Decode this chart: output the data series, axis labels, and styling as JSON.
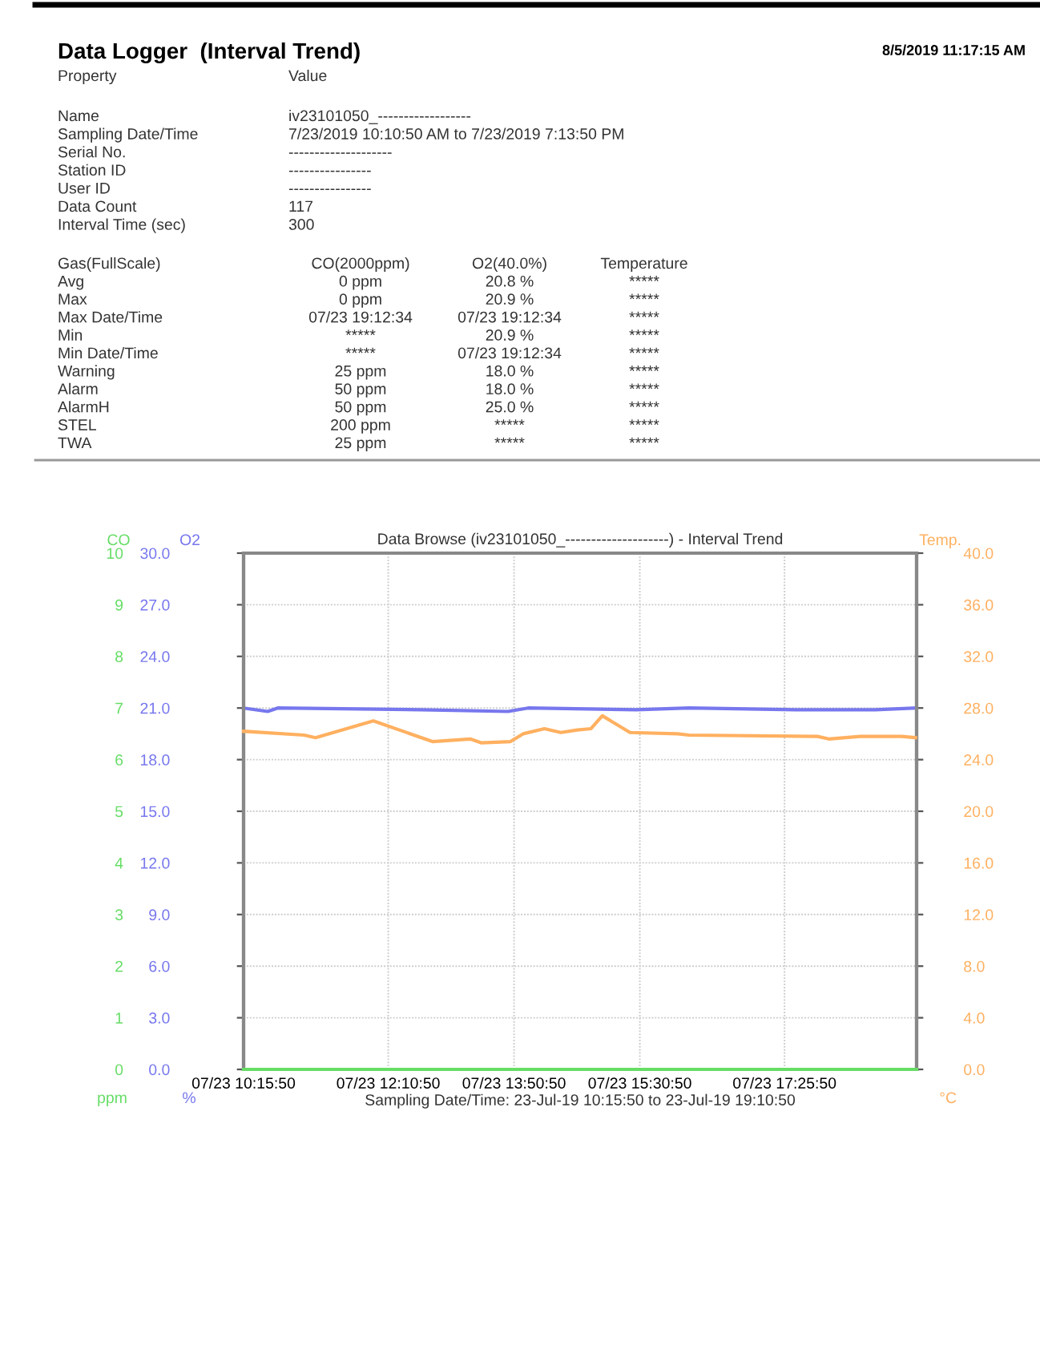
{
  "chart_data": {
    "type": "line",
    "title": "Data Logger  (Interval Trend)",
    "subtitle": "Data Browse (iv23101050_--------------------) - Interval Trend",
    "xlabel": "Sampling Date/Time: 23-Jul-19 10:15:50 to 23-Jul-19 19:10:50",
    "ylabel": "O2",
    "y2label": "Temp.",
    "y3label": "CO",
    "annotations": [
      "8/5/2019 11:17:15 AM",
      "Property",
      "Value",
      "Name",
      "iv23101050_------------------",
      "Sampling Date/Time",
      "7/23/2019 10:10:50 AM to 7/23/2019 7:13:50 PM",
      "Serial No.",
      "--------------------",
      "Station ID",
      "----------------",
      "User ID",
      "----------------",
      "Data Count",
      "117",
      "Interval Time (sec)",
      "300",
      "Gas(FullScale)",
      "CO(2000ppm)",
      "O2(40.0%)",
      "Temperature",
      "Avg",
      "0 ppm",
      "20.8 %",
      "*****",
      "Max",
      "0 ppm",
      "20.9 %",
      "*****",
      "Max Date/Time",
      "07/23 19:12:34",
      "07/23 19:12:34",
      "*****",
      "Min",
      "*****",
      "20.9 %",
      "*****",
      "Min Date/Time",
      "*****",
      "07/23 19:12:34",
      "*****",
      "Warning",
      "25 ppm",
      "18.0 %",
      "*****",
      "Alarm",
      "50 ppm",
      "18.0 %",
      "*****",
      "AlarmH",
      "50 ppm",
      "25.0 %",
      "*****",
      "STEL",
      "200 ppm",
      "*****",
      "*****",
      "TWA",
      "25 ppm",
      "*****",
      "*****",
      "ppm",
      "%",
      "°C"
    ],
    "xlim": [
      "2019-07-23T10:15:50",
      "2019-07-23T19:10:50"
    ],
    "xticks": [
      {
        "value": "2019-07-23T10:15:50",
        "label": "07/23 10:15:50"
      },
      {
        "value": "2019-07-23T12:10:50",
        "label": "07/23 12:10:50"
      },
      {
        "value": "2019-07-23T13:50:50",
        "label": "07/23 13:50:50"
      },
      {
        "value": "2019-07-23T15:30:50",
        "label": "07/23 15:30:50"
      },
      {
        "value": "2019-07-23T17:25:50",
        "label": "07/23 17:25:50"
      }
    ],
    "ylim": [
      0,
      30
    ],
    "yticks": [
      {
        "value": 0,
        "label": "0.0"
      },
      {
        "value": 3,
        "label": "3.0"
      },
      {
        "value": 6,
        "label": "6.0"
      },
      {
        "value": 9,
        "label": "9.0"
      },
      {
        "value": 12,
        "label": "12.0"
      },
      {
        "value": 15,
        "label": "15.0"
      },
      {
        "value": 18,
        "label": "18.0"
      },
      {
        "value": 21,
        "label": "21.0"
      },
      {
        "value": 24,
        "label": "24.0"
      },
      {
        "value": 27,
        "label": "27.0"
      },
      {
        "value": 30,
        "label": "30.0"
      }
    ],
    "y2lim": [
      0,
      40
    ],
    "y2ticks": [
      {
        "value": 0,
        "label": "0.0"
      },
      {
        "value": 4,
        "label": "4.0"
      },
      {
        "value": 8,
        "label": "8.0"
      },
      {
        "value": 12,
        "label": "12.0"
      },
      {
        "value": 16,
        "label": "16.0"
      },
      {
        "value": 20,
        "label": "20.0"
      },
      {
        "value": 24,
        "label": "24.0"
      },
      {
        "value": 28,
        "label": "28.0"
      },
      {
        "value": 32,
        "label": "32.0"
      },
      {
        "value": 36,
        "label": "36.0"
      },
      {
        "value": 40,
        "label": "40.0"
      }
    ],
    "y3lim": [
      0,
      10
    ],
    "y3ticks": [
      0,
      1,
      2,
      3,
      4,
      5,
      6,
      7,
      8,
      9,
      10
    ],
    "grid": true,
    "series": [
      {
        "color": "#66dd66",
        "axis": "y3",
        "x": [
          "2019-07-23T10:15:50",
          "2019-07-23T19:10:50"
        ],
        "values": [
          0,
          0
        ]
      },
      {
        "color": "#7777ee",
        "axis": "y",
        "x": [
          "2019-07-23T10:15:50",
          "2019-07-23T10:35",
          "2019-07-23T10:43",
          "2019-07-23T12:37",
          "2019-07-23T13:46",
          "2019-07-23T14:02",
          "2019-07-23T15:28",
          "2019-07-23T16:10",
          "2019-07-23T17:35",
          "2019-07-23T18:38",
          "2019-07-23T19:10"
        ],
        "values": [
          21.0,
          20.8,
          21.0,
          20.9,
          20.8,
          21.0,
          20.9,
          21.0,
          20.9,
          20.9,
          21.0
        ]
      },
      {
        "color": "#ffb060",
        "axis": "y2",
        "x": [
          "2019-07-23T10:15:50",
          "2019-07-23T11:04",
          "2019-07-23T11:13",
          "2019-07-23T11:59",
          "2019-07-23T12:46",
          "2019-07-23T13:16",
          "2019-07-23T13:25",
          "2019-07-23T13:48",
          "2019-07-23T13:58",
          "2019-07-23T14:15",
          "2019-07-23T14:28",
          "2019-07-23T14:41",
          "2019-07-23T14:52",
          "2019-07-23T15:01",
          "2019-07-23T15:23",
          "2019-07-23T16:01",
          "2019-07-23T16:10",
          "2019-07-23T17:52",
          "2019-07-23T18:01",
          "2019-07-23T18:26",
          "2019-07-23T18:59",
          "2019-07-23T19:10"
        ],
        "values": [
          26.2,
          25.9,
          25.7,
          27.0,
          25.4,
          25.6,
          25.3,
          25.4,
          26.0,
          26.4,
          26.1,
          26.3,
          26.4,
          27.4,
          26.1,
          26.0,
          25.9,
          25.8,
          25.6,
          25.8,
          25.8,
          25.7
        ]
      }
    ]
  }
}
